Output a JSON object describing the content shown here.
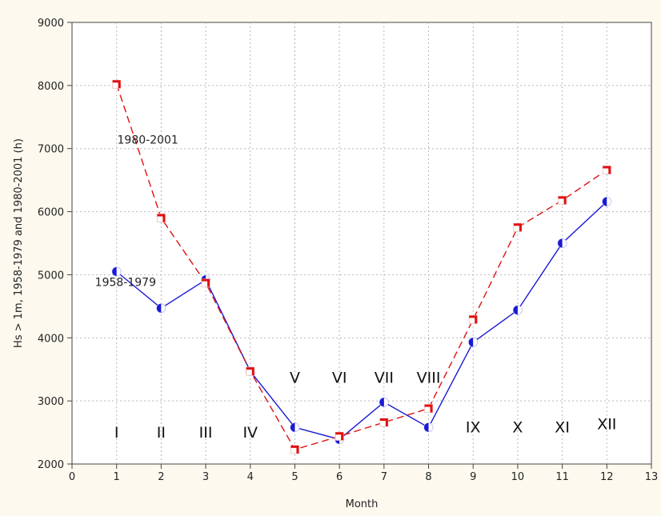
{
  "chart_data": {
    "type": "line",
    "title": "",
    "xlabel": "Month",
    "ylabel": "Hs > 1m, 1958-1979 and 1980-2001 (h)",
    "xlim": [
      0,
      13
    ],
    "ylim": [
      2000,
      9000
    ],
    "x_ticks": [
      0,
      1,
      2,
      3,
      4,
      5,
      6,
      7,
      8,
      9,
      10,
      11,
      12,
      13
    ],
    "y_ticks": [
      2000,
      3000,
      4000,
      5000,
      6000,
      7000,
      8000,
      9000
    ],
    "y_tick_labels": [
      "2000",
      "3000",
      "4000",
      "5000",
      "6000",
      "7000",
      "8000",
      "9000"
    ],
    "grid": true,
    "series": [
      {
        "name": "1958-1979",
        "color": "#1a1ad6",
        "style": "solid",
        "marker": "half-filled circle",
        "x": [
          1,
          2,
          3,
          4,
          5,
          6,
          7,
          8,
          9,
          10,
          11,
          12
        ],
        "values": [
          5050,
          4470,
          4920,
          3470,
          2580,
          2390,
          2980,
          2580,
          3930,
          4440,
          5500,
          6160
        ]
      },
      {
        "name": "1980-2001",
        "color": "#e01010",
        "style": "dashed",
        "marker": "half-filled square",
        "x": [
          1,
          2,
          3,
          4,
          5,
          6,
          7,
          8,
          9,
          10,
          11,
          12
        ],
        "values": [
          8020,
          5900,
          4870,
          3470,
          2230,
          2440,
          2660,
          2880,
          4290,
          5750,
          6180,
          6660
        ]
      }
    ],
    "annotations": [
      {
        "text": "I",
        "x": 1,
        "y": 2420
      },
      {
        "text": "II",
        "x": 2,
        "y": 2420
      },
      {
        "text": "III",
        "x": 3,
        "y": 2420
      },
      {
        "text": "IV",
        "x": 4,
        "y": 2420
      },
      {
        "text": "V",
        "x": 5,
        "y": 3290
      },
      {
        "text": "VI",
        "x": 6,
        "y": 3290
      },
      {
        "text": "VII",
        "x": 7,
        "y": 3290
      },
      {
        "text": "VIII",
        "x": 8,
        "y": 3290
      },
      {
        "text": "IX",
        "x": 9,
        "y": 2500
      },
      {
        "text": "X",
        "x": 10,
        "y": 2500
      },
      {
        "text": "XI",
        "x": 11,
        "y": 2500
      },
      {
        "text": "XII",
        "x": 12,
        "y": 2550
      }
    ],
    "series_labels": [
      {
        "text": "1980-2001",
        "x": 1.7,
        "y": 7080
      },
      {
        "text": "1958-1979",
        "x": 1.2,
        "y": 4820
      }
    ]
  }
}
